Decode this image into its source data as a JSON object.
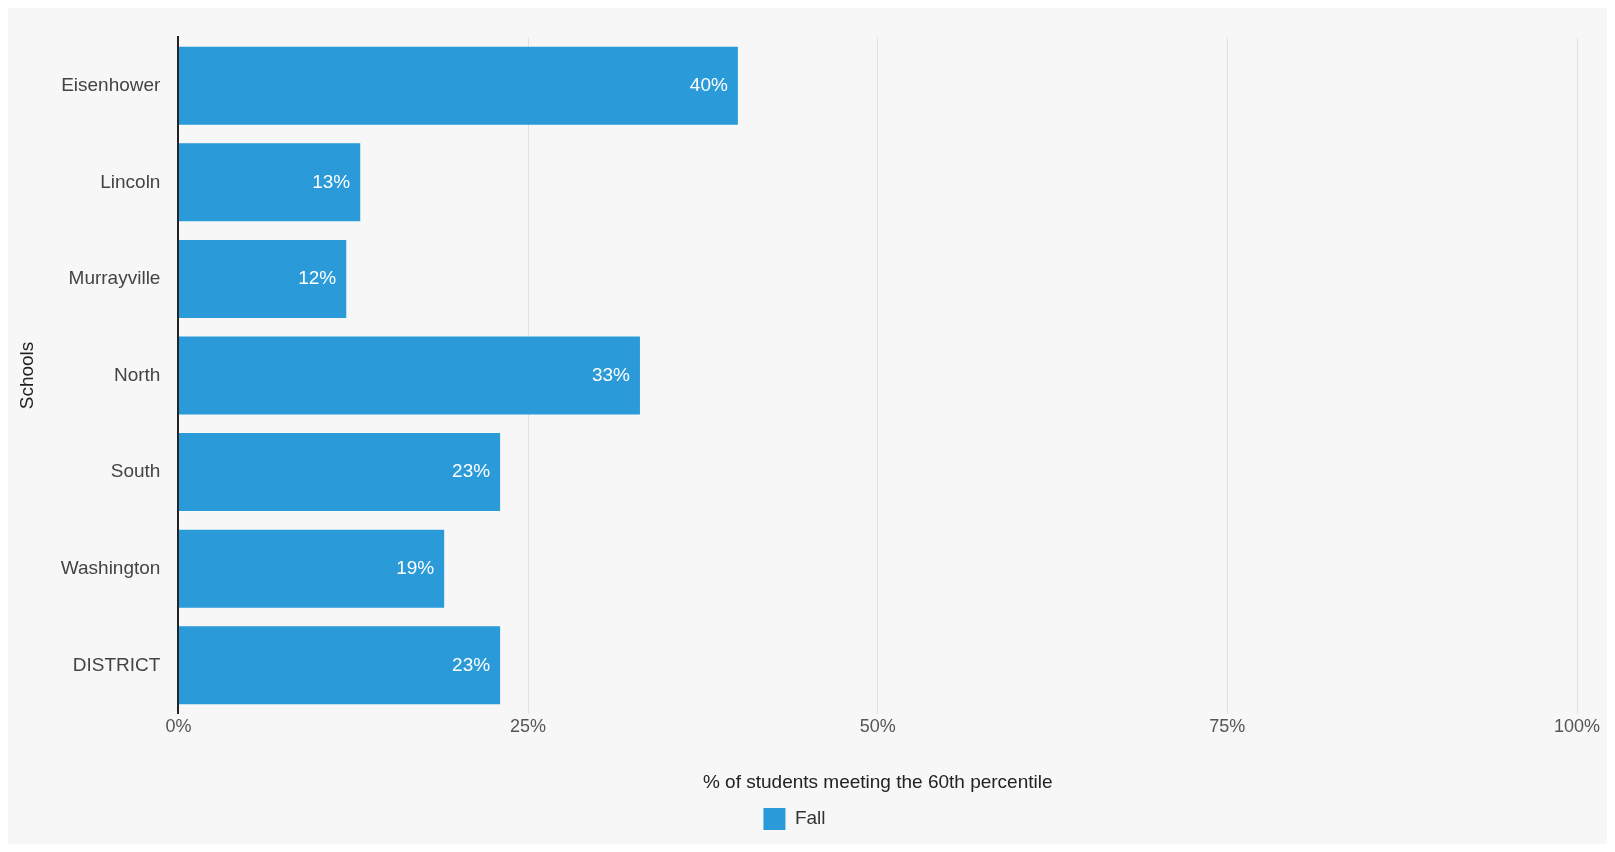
{
  "chart_data": {
    "type": "bar",
    "orientation": "horizontal",
    "categories": [
      "Eisenhower",
      "Lincoln",
      "Murrayville",
      "North",
      "South",
      "Washington",
      "DISTRICT"
    ],
    "series": [
      {
        "name": "Fall",
        "color": "#2a9ad8",
        "values": [
          40,
          13,
          12,
          33,
          23,
          19,
          23
        ],
        "value_labels": [
          "40%",
          "13%",
          "12%",
          "33%",
          "23%",
          "19%",
          "23%"
        ]
      }
    ],
    "xlim": [
      0,
      100
    ],
    "xticks": [
      {
        "value": 0,
        "label": "0%"
      },
      {
        "value": 25,
        "label": "25%"
      },
      {
        "value": 50,
        "label": "50%"
      },
      {
        "value": 75,
        "label": "75%"
      },
      {
        "value": 100,
        "label": "100%"
      }
    ],
    "xlabel": "% of students meeting the 60th percentile",
    "ylabel": "Schools",
    "grid": "x",
    "legend": "bottom"
  }
}
